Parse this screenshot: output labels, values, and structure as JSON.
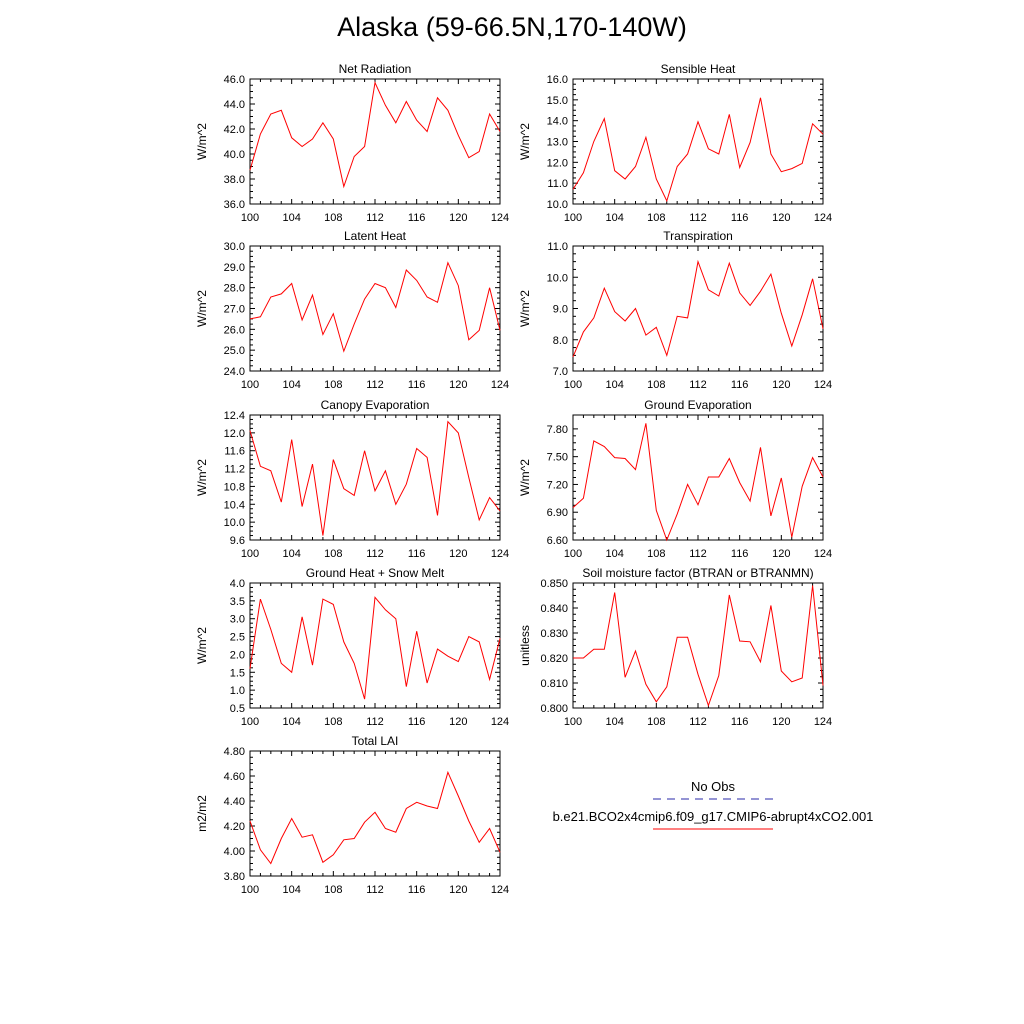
{
  "title": "Alaska (59-66.5N,170-140W)",
  "colors": {
    "model": "#ff0000",
    "obs": "#2a2aa8",
    "axis": "#000000"
  },
  "legend": {
    "obs_label": "No Obs",
    "model_label": "b.e21.BCO2x4cmip6.f09_g17.CMIP6-abrupt4xCO2.001"
  },
  "chart_data": [
    {
      "type": "line",
      "title": "Net Radiation",
      "ylabel": "W/m^2",
      "x": [
        100,
        101,
        102,
        103,
        104,
        105,
        106,
        107,
        108,
        109,
        110,
        111,
        112,
        113,
        114,
        115,
        116,
        117,
        118,
        119,
        120,
        121,
        122,
        123,
        124
      ],
      "xlim": [
        100,
        124
      ],
      "xticks": [
        100,
        104,
        108,
        112,
        116,
        120,
        124
      ],
      "ylim": [
        36,
        46
      ],
      "yticks": [
        "36.0",
        "38.0",
        "40.0",
        "42.0",
        "44.0",
        "46.0"
      ],
      "ytick_values": [
        36,
        38,
        40,
        42,
        44,
        46
      ],
      "values": [
        38.7,
        41.6,
        43.2,
        43.5,
        41.3,
        40.6,
        41.2,
        42.5,
        41.2,
        37.4,
        39.8,
        40.6,
        45.7,
        43.9,
        42.5,
        44.2,
        42.7,
        41.8,
        44.5,
        43.5,
        41.5,
        39.7,
        40.2,
        43.2,
        41.8
      ]
    },
    {
      "type": "line",
      "title": "Sensible Heat",
      "ylabel": "W/m^2",
      "x": [
        100,
        101,
        102,
        103,
        104,
        105,
        106,
        107,
        108,
        109,
        110,
        111,
        112,
        113,
        114,
        115,
        116,
        117,
        118,
        119,
        120,
        121,
        122,
        123,
        124
      ],
      "xlim": [
        100,
        124
      ],
      "xticks": [
        100,
        104,
        108,
        112,
        116,
        120,
        124
      ],
      "ylim": [
        10,
        16
      ],
      "yticks": [
        "10.0",
        "11.0",
        "12.0",
        "13.0",
        "14.0",
        "15.0",
        "16.0"
      ],
      "ytick_values": [
        10,
        11,
        12,
        13,
        14,
        15,
        16
      ],
      "values": [
        10.7,
        11.5,
        13.0,
        14.1,
        11.6,
        11.2,
        11.8,
        13.2,
        11.2,
        10.15,
        11.8,
        12.4,
        13.95,
        12.65,
        12.4,
        14.3,
        11.75,
        12.95,
        15.1,
        12.4,
        11.55,
        11.7,
        11.95,
        13.85,
        13.35
      ]
    },
    {
      "type": "line",
      "title": "Latent Heat",
      "ylabel": "W/m^2",
      "x": [
        100,
        101,
        102,
        103,
        104,
        105,
        106,
        107,
        108,
        109,
        110,
        111,
        112,
        113,
        114,
        115,
        116,
        117,
        118,
        119,
        120,
        121,
        122,
        123,
        124
      ],
      "xlim": [
        100,
        124
      ],
      "xticks": [
        100,
        104,
        108,
        112,
        116,
        120,
        124
      ],
      "ylim": [
        24,
        30
      ],
      "yticks": [
        "24.0",
        "25.0",
        "26.0",
        "27.0",
        "28.0",
        "29.0",
        "30.0"
      ],
      "ytick_values": [
        24,
        25,
        26,
        27,
        28,
        29,
        30
      ],
      "values": [
        26.5,
        26.6,
        27.55,
        27.7,
        28.2,
        26.45,
        27.65,
        25.75,
        26.75,
        24.95,
        26.25,
        27.45,
        28.2,
        28.0,
        27.05,
        28.85,
        28.35,
        27.55,
        27.3,
        29.2,
        28.1,
        25.5,
        25.95,
        28.0,
        25.95
      ]
    },
    {
      "type": "line",
      "title": "Transpiration",
      "ylabel": "W/m^2",
      "x": [
        100,
        101,
        102,
        103,
        104,
        105,
        106,
        107,
        108,
        109,
        110,
        111,
        112,
        113,
        114,
        115,
        116,
        117,
        118,
        119,
        120,
        121,
        122,
        123,
        124
      ],
      "xlim": [
        100,
        124
      ],
      "xticks": [
        100,
        104,
        108,
        112,
        116,
        120,
        124
      ],
      "ylim": [
        7,
        11
      ],
      "yticks": [
        "7.0",
        "8.0",
        "9.0",
        "10.0",
        "11.0"
      ],
      "ytick_values": [
        7,
        8,
        9,
        10,
        11
      ],
      "values": [
        7.45,
        8.25,
        8.7,
        9.65,
        8.9,
        8.6,
        9.0,
        8.15,
        8.4,
        7.5,
        8.75,
        8.7,
        10.5,
        9.6,
        9.4,
        10.45,
        9.5,
        9.1,
        9.55,
        10.1,
        8.85,
        7.8,
        8.8,
        9.95,
        8.35
      ]
    },
    {
      "type": "line",
      "title": "Canopy Evaporation",
      "ylabel": "W/m^2",
      "x": [
        100,
        101,
        102,
        103,
        104,
        105,
        106,
        107,
        108,
        109,
        110,
        111,
        112,
        113,
        114,
        115,
        116,
        117,
        118,
        119,
        120,
        121,
        122,
        123,
        124
      ],
      "xlim": [
        100,
        124
      ],
      "xticks": [
        100,
        104,
        108,
        112,
        116,
        120,
        124
      ],
      "ylim": [
        9.6,
        12.4
      ],
      "yticks": [
        "9.6",
        "10.0",
        "10.4",
        "10.8",
        "11.2",
        "11.6",
        "12.0",
        "12.4"
      ],
      "ytick_values": [
        9.6,
        10.0,
        10.4,
        10.8,
        11.2,
        11.6,
        12.0,
        12.4
      ],
      "values": [
        12.05,
        11.25,
        11.15,
        10.45,
        11.85,
        10.35,
        11.3,
        9.7,
        11.4,
        10.75,
        10.6,
        11.6,
        10.7,
        11.15,
        10.4,
        10.85,
        11.65,
        11.45,
        10.15,
        12.25,
        12.0,
        11.0,
        10.05,
        10.55,
        10.25
      ]
    },
    {
      "type": "line",
      "title": "Ground Evaporation",
      "ylabel": "W/m^2",
      "x": [
        100,
        101,
        102,
        103,
        104,
        105,
        106,
        107,
        108,
        109,
        110,
        111,
        112,
        113,
        114,
        115,
        116,
        117,
        118,
        119,
        120,
        121,
        122,
        123,
        124
      ],
      "xlim": [
        100,
        124
      ],
      "xticks": [
        100,
        104,
        108,
        112,
        116,
        120,
        124
      ],
      "ylim": [
        6.6,
        7.95
      ],
      "yticks": [
        "6.60",
        "6.90",
        "7.20",
        "7.50",
        "7.80"
      ],
      "ytick_values": [
        6.6,
        6.9,
        7.2,
        7.5,
        7.8
      ],
      "values": [
        6.95,
        7.05,
        7.67,
        7.61,
        7.49,
        7.48,
        7.36,
        7.86,
        6.92,
        6.6,
        6.88,
        7.2,
        6.98,
        7.28,
        7.28,
        7.48,
        7.22,
        7.02,
        7.6,
        6.86,
        7.27,
        6.63,
        7.18,
        7.49,
        7.28
      ]
    },
    {
      "type": "line",
      "title": "Ground Heat + Snow Melt",
      "ylabel": "W/m^2",
      "x": [
        100,
        101,
        102,
        103,
        104,
        105,
        106,
        107,
        108,
        109,
        110,
        111,
        112,
        113,
        114,
        115,
        116,
        117,
        118,
        119,
        120,
        121,
        122,
        123,
        124
      ],
      "xlim": [
        100,
        124
      ],
      "xticks": [
        100,
        104,
        108,
        112,
        116,
        120,
        124
      ],
      "ylim": [
        0.5,
        4.0
      ],
      "yticks": [
        "0.5",
        "1.0",
        "1.5",
        "2.0",
        "2.5",
        "3.0",
        "3.5",
        "4.0"
      ],
      "ytick_values": [
        0.5,
        1.0,
        1.5,
        2.0,
        2.5,
        3.0,
        3.5,
        4.0
      ],
      "values": [
        1.6,
        3.55,
        2.7,
        1.75,
        1.5,
        3.05,
        1.7,
        3.55,
        3.4,
        2.35,
        1.75,
        0.75,
        3.6,
        3.25,
        3.0,
        1.1,
        2.65,
        1.2,
        2.15,
        1.95,
        1.8,
        2.5,
        2.35,
        1.3,
        2.45
      ]
    },
    {
      "type": "line",
      "title": "Soil moisture factor (BTRAN or BTRANMN)",
      "ylabel": "unitless",
      "x": [
        100,
        101,
        102,
        103,
        104,
        105,
        106,
        107,
        108,
        109,
        110,
        111,
        112,
        113,
        114,
        115,
        116,
        117,
        118,
        119,
        120,
        121,
        122,
        123,
        124
      ],
      "xlim": [
        100,
        124
      ],
      "xticks": [
        100,
        104,
        108,
        112,
        116,
        120,
        124
      ],
      "ylim": [
        0.8,
        0.85
      ],
      "yticks": [
        "0.800",
        "0.810",
        "0.820",
        "0.830",
        "0.840",
        "0.850"
      ],
      "ytick_values": [
        0.8,
        0.81,
        0.82,
        0.83,
        0.84,
        0.85
      ],
      "values": [
        0.82,
        0.82,
        0.8235,
        0.8235,
        0.8462,
        0.8123,
        0.8228,
        0.8095,
        0.8025,
        0.8085,
        0.8283,
        0.8283,
        0.8135,
        0.801,
        0.813,
        0.8452,
        0.8268,
        0.8265,
        0.8185,
        0.841,
        0.8148,
        0.8105,
        0.812,
        0.849,
        0.809
      ]
    },
    {
      "type": "line",
      "title": "Total LAI",
      "ylabel": "m2/m2",
      "x": [
        100,
        101,
        102,
        103,
        104,
        105,
        106,
        107,
        108,
        109,
        110,
        111,
        112,
        113,
        114,
        115,
        116,
        117,
        118,
        119,
        120,
        121,
        122,
        123,
        124
      ],
      "xlim": [
        100,
        124
      ],
      "xticks": [
        100,
        104,
        108,
        112,
        116,
        120,
        124
      ],
      "ylim": [
        3.8,
        4.8
      ],
      "yticks": [
        "3.80",
        "4.00",
        "4.20",
        "4.40",
        "4.60",
        "4.80"
      ],
      "ytick_values": [
        3.8,
        4.0,
        4.2,
        4.4,
        4.6,
        4.8
      ],
      "values": [
        4.24,
        4.01,
        3.9,
        4.1,
        4.26,
        4.11,
        4.13,
        3.91,
        3.97,
        4.09,
        4.1,
        4.23,
        4.31,
        4.18,
        4.15,
        4.34,
        4.39,
        4.36,
        4.34,
        4.63,
        4.44,
        4.24,
        4.07,
        4.18,
        3.99
      ]
    }
  ]
}
